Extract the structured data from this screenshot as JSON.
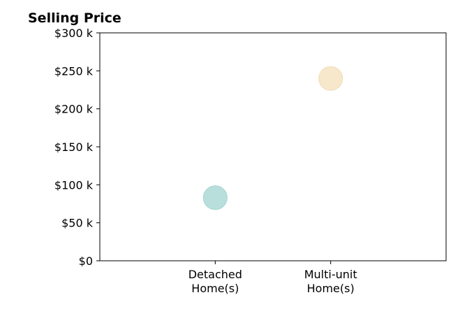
{
  "chart_data": {
    "type": "scatter",
    "title": "Selling Price",
    "categories": [
      [
        "Detached",
        "Home(s)"
      ],
      [
        "Multi-unit",
        "Home(s)"
      ]
    ],
    "values": [
      83000,
      240000
    ],
    "point_colors": [
      "#b8dfdc",
      "#f7e8cc"
    ],
    "point_edge_colors": [
      "#a6d3cf",
      "#f0dcb4"
    ],
    "ylim": [
      0,
      300000
    ],
    "yticks": [
      0,
      50000,
      100000,
      150000,
      200000,
      250000,
      300000
    ],
    "ytick_labels": [
      "$0",
      "$50 k",
      "$100 k",
      "$150 k",
      "$200 k",
      "$250 k",
      "$300 k"
    ],
    "xlabel": "",
    "ylabel": "",
    "grid": false,
    "legend": false
  }
}
